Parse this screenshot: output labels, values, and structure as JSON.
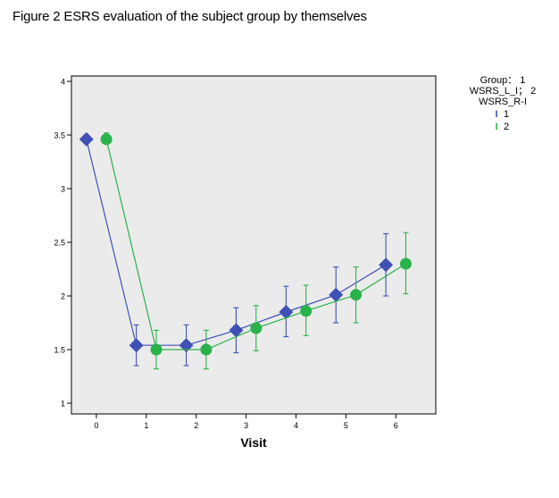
{
  "figure_title": "Figure 2 ESRS evaluation of the subject group by themselves",
  "legend": {
    "header": [
      "Group： 1",
      "WSRS_L_I； 2",
      "WSRS_R-I"
    ],
    "entries": [
      {
        "label": "1",
        "color": "#3f51b5",
        "symbol": "I"
      },
      {
        "label": "2",
        "color": "#2ab24a",
        "symbol": "I"
      }
    ]
  },
  "chart_data": {
    "type": "line",
    "xlabel": "Visit",
    "ylabel": "",
    "xlim": [
      -0.5,
      6.8
    ],
    "ylim": [
      0.9,
      4.05
    ],
    "x_ticks": [
      "0",
      "1",
      "2",
      "3",
      "4",
      "5",
      "6"
    ],
    "y_ticks": [
      "1",
      "1.5",
      "2",
      "2.5",
      "3",
      "3.5",
      "4"
    ],
    "grid": false,
    "plot_background": "#ebebeb",
    "legend_position": "right",
    "series": [
      {
        "name": "1",
        "color": "#3f51b5",
        "marker": "diamond",
        "x": [
          0,
          1,
          2,
          3,
          4,
          5,
          6
        ],
        "y": [
          3.46,
          1.54,
          1.54,
          1.68,
          1.85,
          2.01,
          2.29
        ],
        "err_low": [
          3.42,
          1.35,
          1.35,
          1.47,
          1.62,
          1.75,
          2.0
        ],
        "err_high": [
          3.5,
          1.73,
          1.73,
          1.89,
          2.09,
          2.27,
          2.58
        ]
      },
      {
        "name": "2",
        "color": "#2ab24a",
        "marker": "circle",
        "x": [
          0,
          1,
          2,
          3,
          4,
          5,
          6
        ],
        "y": [
          3.46,
          1.5,
          1.5,
          1.7,
          1.86,
          2.01,
          2.3
        ],
        "err_low": [
          3.42,
          1.32,
          1.32,
          1.49,
          1.63,
          1.75,
          2.02
        ],
        "err_high": [
          3.52,
          1.68,
          1.68,
          1.91,
          2.1,
          2.27,
          2.59
        ]
      }
    ]
  }
}
